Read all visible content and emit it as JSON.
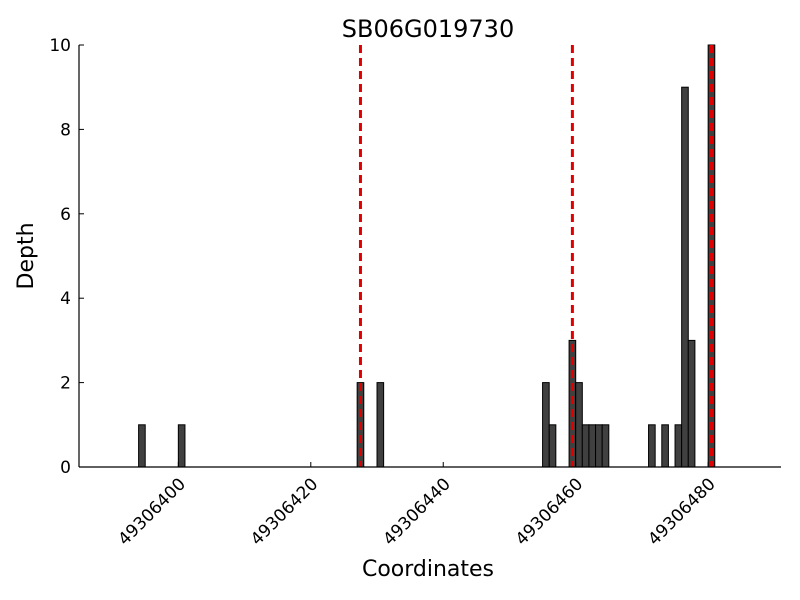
{
  "chart_data": {
    "type": "bar",
    "title": "SB06G019730",
    "xlabel": "Coordinates",
    "ylabel": "Depth",
    "xlim": [
      49306385,
      49306491
    ],
    "ylim": [
      0,
      10
    ],
    "x_ticks": [
      49306400,
      49306420,
      49306440,
      49306460,
      49306480
    ],
    "y_ticks": [
      0,
      2,
      4,
      6,
      8,
      10
    ],
    "bar_color": "#404040",
    "marker_color": "#e00000",
    "grid": false,
    "series": [
      {
        "x": [
          49306394,
          49306400,
          49306427,
          49306430,
          49306455,
          49306456,
          49306459,
          49306460,
          49306461,
          49306462,
          49306463,
          49306464,
          49306471,
          49306473,
          49306475,
          49306476,
          49306477,
          49306480
        ],
        "values": [
          1,
          1,
          2,
          2,
          2,
          1,
          3,
          2,
          1,
          1,
          1,
          1,
          1,
          1,
          1,
          9,
          3,
          10
        ]
      }
    ],
    "markers": [
      49306427,
      49306459,
      49306480
    ]
  }
}
